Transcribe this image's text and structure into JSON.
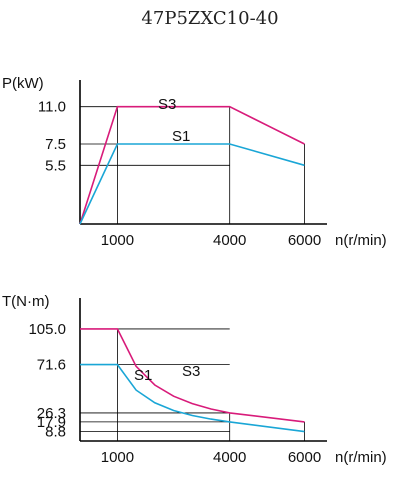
{
  "header": {
    "title": "47P5ZXC10-40"
  },
  "chart_data": [
    {
      "type": "line",
      "ylabel": "P(kW)",
      "xlabel": "n(r/min)",
      "xticks": [
        1000,
        4000,
        6000
      ],
      "yticks": [
        "11.0",
        "7.5",
        "5.5"
      ],
      "xlim": [
        0,
        6600
      ],
      "ylim": [
        0,
        13.5
      ],
      "series": [
        {
          "name": "S3",
          "color": "#d81b7a",
          "x": [
            0,
            1000,
            4000,
            6000
          ],
          "y": [
            0,
            11.0,
            11.0,
            7.5
          ]
        },
        {
          "name": "S1",
          "color": "#1aa6d6",
          "x": [
            0,
            1000,
            4000,
            6000
          ],
          "y": [
            0,
            7.5,
            7.5,
            5.5
          ]
        }
      ]
    },
    {
      "type": "line",
      "ylabel": "T(N·m)",
      "xlabel": "n(r/min)",
      "xticks": [
        1000,
        4000,
        6000
      ],
      "yticks": [
        "105.0",
        "71.6",
        "26.3",
        "17.9",
        "8.8"
      ],
      "xlim": [
        0,
        6600
      ],
      "ylim": [
        0,
        134
      ],
      "series": [
        {
          "name": "S3",
          "color": "#d81b7a",
          "x": [
            0,
            1000,
            1500,
            2000,
            2500,
            3000,
            3500,
            4000,
            6000
          ],
          "y": [
            105.0,
            105.0,
            70.0,
            52.5,
            42.0,
            35.0,
            30.0,
            26.3,
            17.9
          ]
        },
        {
          "name": "S1",
          "color": "#1aa6d6",
          "x": [
            0,
            1000,
            1500,
            2000,
            2500,
            3000,
            3500,
            4000,
            6000
          ],
          "y": [
            71.6,
            71.6,
            47.7,
            35.8,
            28.6,
            23.9,
            20.5,
            17.9,
            8.8
          ]
        }
      ]
    }
  ]
}
